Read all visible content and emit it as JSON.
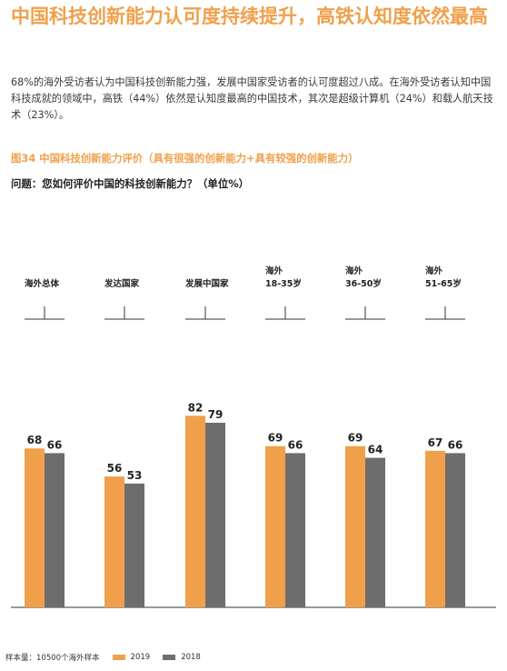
{
  "page": {
    "title": "中国科技创新能力认可度持续提升，高铁认知度依然最高",
    "intro": "68%的海外受访者认为中国科技创新能力强，发展中国家受访者的认可度超过八成。在海外受访者认知中国科技成就的领域中，高铁（44%）依然是认知度最高的中国技术，其次是超级计算机（24%）和载人航天技术（23%）。",
    "figure_caption": "图34  中国科技创新能力评价（具有很强的创新能力+具有较强的创新能力）",
    "question": "问题：您如何评价中国的科技创新能力？（单位%）",
    "sample_note": "样本量：10500个海外样本"
  },
  "colors": {
    "accent": "#f0a04b",
    "series_2019": "#f0a04b",
    "series_2018": "#6d6d6d",
    "axis": "#333333"
  },
  "chart_data": {
    "type": "bar",
    "categories": [
      [
        "海外总体"
      ],
      [
        "发达国家"
      ],
      [
        "发展中国家"
      ],
      [
        "海外",
        "18-35岁"
      ],
      [
        "海外",
        "36-50岁"
      ],
      [
        "海外",
        "51-65岁"
      ]
    ],
    "series": [
      {
        "name": "2019",
        "values": [
          68,
          56,
          82,
          69,
          69,
          67
        ]
      },
      {
        "name": "2018",
        "values": [
          66,
          53,
          79,
          66,
          64,
          66
        ]
      }
    ],
    "ylim": [
      0,
      100
    ],
    "legend_position": "bottom",
    "grid": false
  }
}
